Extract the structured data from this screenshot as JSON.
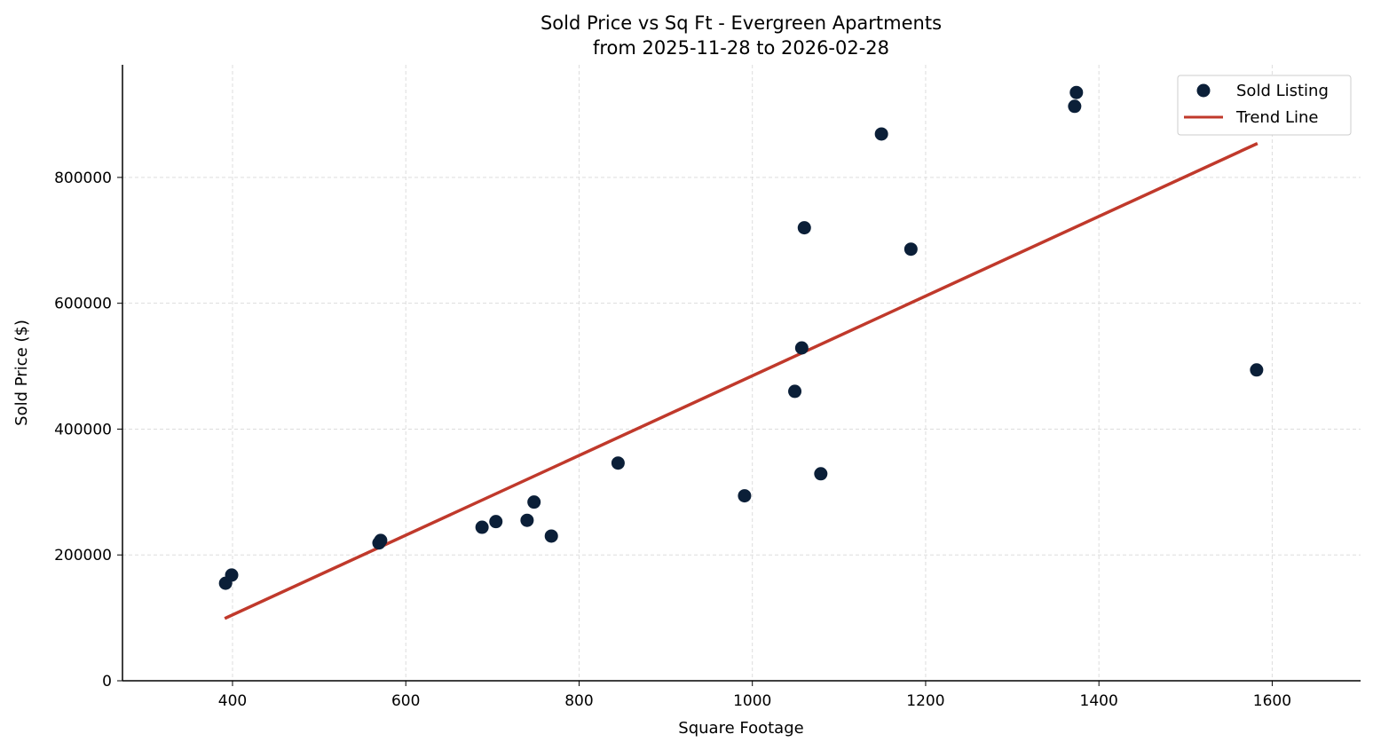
{
  "chart_data": {
    "type": "scatter",
    "title": "Sold Price vs Sq Ft - Evergreen Apartments",
    "subtitle": "from 2025-11-28 to 2026-02-28",
    "xlabel": "Square Footage",
    "ylabel": "Sold Price ($)",
    "xlim": [
      273,
      1702
    ],
    "ylim": [
      0,
      979000
    ],
    "xticks": [
      400,
      600,
      800,
      1000,
      1200,
      1400,
      1600
    ],
    "yticks": [
      0,
      200000,
      400000,
      600000,
      800000
    ],
    "grid": true,
    "legend_placement": "top-right",
    "colors": {
      "points": "#0b1f38",
      "trend": "#c0392b"
    },
    "series": [
      {
        "name": "Sold Listing",
        "type": "scatter",
        "points": [
          [
            392,
            155000
          ],
          [
            399,
            168000
          ],
          [
            569,
            219000
          ],
          [
            571,
            223000
          ],
          [
            688,
            244000
          ],
          [
            704,
            253000
          ],
          [
            740,
            255000
          ],
          [
            748,
            284000
          ],
          [
            768,
            230000
          ],
          [
            845,
            346000
          ],
          [
            991,
            294000
          ],
          [
            1049,
            460000
          ],
          [
            1057,
            529000
          ],
          [
            1060,
            720000
          ],
          [
            1079,
            329000
          ],
          [
            1149,
            869000
          ],
          [
            1183,
            686000
          ],
          [
            1372,
            913000
          ],
          [
            1374,
            935000
          ],
          [
            1582,
            494000
          ]
        ]
      },
      {
        "name": "Trend Line",
        "type": "line",
        "points": [
          [
            391,
            99000
          ],
          [
            1583,
            854000
          ]
        ]
      }
    ]
  }
}
